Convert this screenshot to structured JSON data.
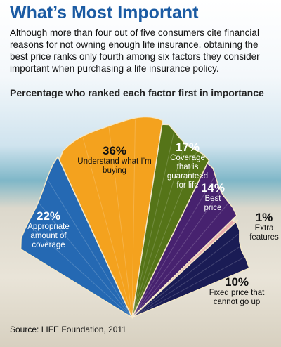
{
  "chart_data": {
    "type": "pie",
    "title": "What’s Most Important",
    "subtitle": "Although more than four out of five consumers cite financial reasons for not owning enough life insurance, obtaining the best price ranks only fourth among six factors they consider important when purchasing a life insurance policy.",
    "heading": "Percentage who ranked each factor first in importance",
    "categories": [
      "Appropriate amount of coverage",
      "Understand what I’m buying",
      "Coverage that is guaranteed for life",
      "Best price",
      "Extra features",
      "Fixed price that cannot go up"
    ],
    "values": [
      22,
      36,
      17,
      14,
      1,
      10
    ],
    "value_labels": [
      "22%",
      "36%",
      "17%",
      "14%",
      "1%",
      "10%"
    ],
    "colors": [
      "#2569b3",
      "#f4a21e",
      "#557418",
      "#47226f",
      "#e8a3a0",
      "#1a1c55"
    ],
    "source": "Source: LIFE Foundation, 2011"
  }
}
